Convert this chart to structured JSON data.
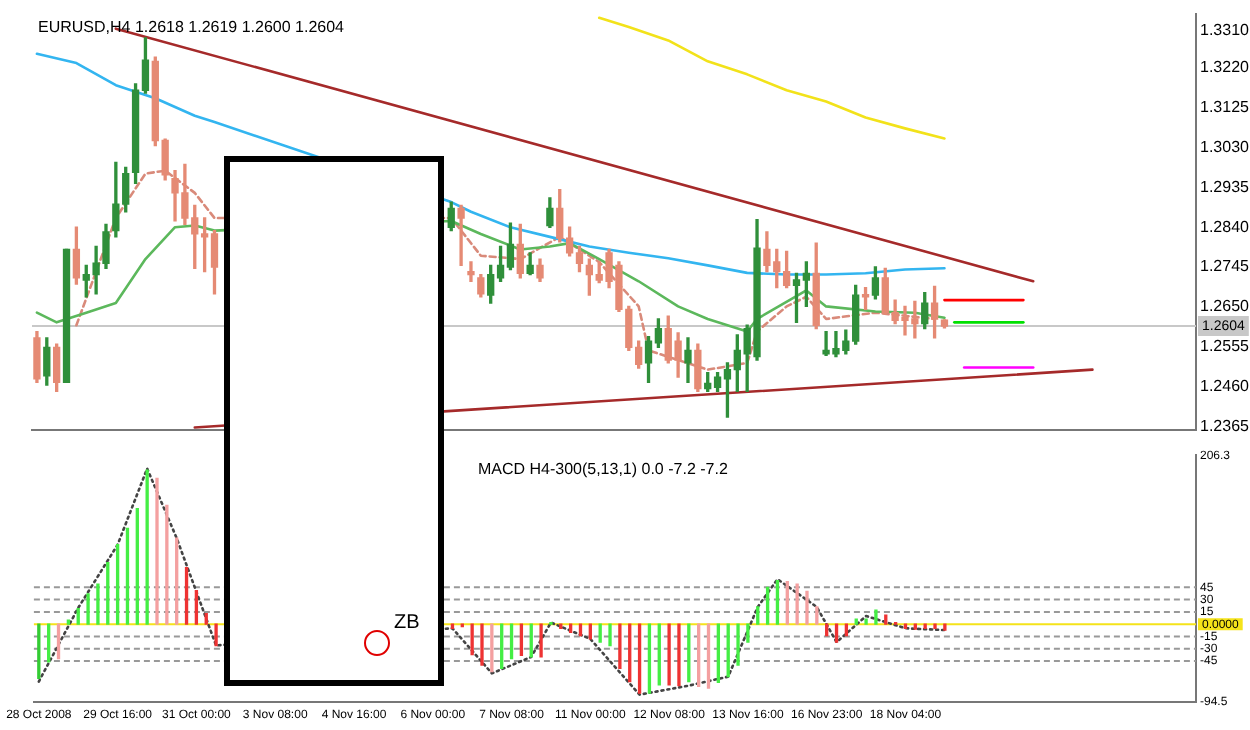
{
  "chart_data": [
    {
      "type": "candlestick",
      "title": "EURUSD,H4 1.2618 1.2619 1.2600 1.2604",
      "tick_labels": "y",
      "legend": false,
      "categories": [
        null,
        null,
        null,
        null,
        null,
        null,
        null,
        null,
        null,
        null,
        null,
        null,
        null,
        null,
        null,
        null,
        null,
        null,
        null,
        null,
        null,
        null,
        null,
        null,
        null,
        null,
        null,
        null,
        null,
        null,
        null,
        null,
        null,
        null,
        null,
        null,
        null,
        null,
        null,
        null,
        null,
        null,
        null,
        null,
        null,
        null,
        null,
        null,
        null,
        null,
        null,
        null,
        null,
        null,
        null,
        null,
        null,
        null,
        null,
        null,
        null,
        null,
        null,
        null,
        null,
        null,
        null,
        null,
        null,
        null,
        null,
        null,
        null,
        null,
        null,
        null,
        null,
        null,
        null,
        null,
        null,
        null,
        null,
        null,
        null,
        null,
        null,
        null,
        null,
        null,
        null,
        null,
        null,
        null,
        null,
        null,
        null,
        null,
        null,
        null,
        null,
        null,
        null,
        null,
        null,
        null,
        null,
        null,
        null,
        null,
        null,
        null,
        null,
        null,
        null,
        null,
        null,
        null
      ],
      "ohlc": [
        [
          1.2576,
          1.2591,
          1.247,
          1.2478
        ],
        [
          1.2485,
          1.2576,
          1.2463,
          1.2553
        ],
        [
          1.2553,
          1.2561,
          1.2448,
          1.247
        ],
        [
          1.247,
          1.2787,
          1.247,
          1.2787
        ],
        [
          1.2787,
          1.284,
          1.2704,
          1.2719
        ],
        [
          1.2714,
          1.2749,
          1.2674,
          1.2727
        ],
        [
          1.2727,
          1.2794,
          1.2681,
          1.2754
        ],
        [
          1.2754,
          1.2847,
          1.2742,
          1.2829
        ],
        [
          1.2832,
          1.2995,
          1.2817,
          1.2895
        ],
        [
          1.2895,
          1.2983,
          1.2877,
          1.2968
        ],
        [
          1.2971,
          1.3182,
          1.2945,
          1.3167
        ],
        [
          1.3167,
          1.3292,
          1.316,
          1.3239
        ],
        [
          1.3236,
          1.3246,
          1.3035,
          1.3047
        ],
        [
          1.3047,
          1.305,
          1.2953,
          1.2965
        ],
        [
          1.2956,
          1.2975,
          1.2855,
          1.2922
        ],
        [
          1.2922,
          1.299,
          1.2847,
          1.2862
        ],
        [
          1.2862,
          1.2892,
          1.2742,
          1.2824
        ],
        [
          1.2824,
          1.2862,
          1.2734,
          1.2817
        ],
        [
          1.2824,
          1.2832,
          1.2681,
          1.2745
        ],
        null,
        null,
        null,
        null,
        null,
        null,
        null,
        null,
        null,
        null,
        null,
        null,
        null,
        null,
        null,
        null,
        null,
        null,
        null,
        null,
        null,
        null,
        null,
        [
          1.284,
          1.29,
          1.2832,
          1.2885
        ],
        [
          1.2885,
          1.2892,
          1.2749,
          1.2862
        ],
        [
          1.2734,
          1.2757,
          1.2711,
          1.2727
        ],
        [
          1.2719,
          1.2727,
          1.2674,
          1.2681
        ],
        [
          1.2678,
          1.2749,
          1.2659,
          1.2727
        ],
        [
          1.2719,
          1.2794,
          1.2711,
          1.2749
        ],
        [
          1.2745,
          1.285,
          1.2739,
          1.2799
        ],
        [
          1.2799,
          1.2847,
          1.2719,
          1.273
        ],
        [
          1.273,
          1.2779,
          1.2727,
          1.2749
        ],
        [
          1.2749,
          1.2764,
          1.2711,
          1.2719
        ],
        [
          1.2844,
          1.291,
          1.284,
          1.2885
        ],
        [
          1.2885,
          1.293,
          1.2805,
          1.2814
        ],
        [
          1.2814,
          1.284,
          1.2772,
          1.2779
        ],
        [
          1.2779,
          1.2794,
          1.2734,
          1.2754
        ],
        [
          1.2749,
          1.2764,
          1.2678,
          1.2727
        ],
        [
          1.2727,
          1.2757,
          1.2708,
          1.2714
        ],
        [
          1.2779,
          1.2787,
          1.2696,
          1.2711
        ],
        [
          1.2749,
          1.2757,
          1.2639,
          1.2644
        ],
        [
          1.2644,
          1.2651,
          1.2546,
          1.2553
        ],
        [
          1.2553,
          1.2568,
          1.2504,
          1.2513
        ],
        [
          1.2516,
          1.2579,
          1.247,
          1.2568
        ],
        [
          1.2564,
          1.2621,
          1.2553,
          1.2598
        ],
        [
          1.2598,
          1.2628,
          1.2516,
          1.2523
        ],
        [
          1.2568,
          1.2588,
          1.2482,
          1.2523
        ],
        [
          1.2516,
          1.2576,
          1.247,
          1.2546
        ],
        [
          1.2546,
          1.2561,
          1.2448,
          1.2455
        ],
        [
          1.2455,
          1.2493,
          1.2448,
          1.2467
        ],
        [
          1.2458,
          1.2493,
          1.2448,
          1.2482
        ],
        [
          1.2478,
          1.2516,
          1.2387,
          1.25
        ],
        [
          1.25,
          1.2583,
          1.2448,
          1.2546
        ],
        [
          1.2538,
          1.2606,
          1.2448,
          1.2598
        ],
        [
          1.2531,
          1.2858,
          1.2523,
          1.279
        ],
        [
          1.2787,
          1.2829,
          1.2734,
          1.2749
        ],
        [
          1.2757,
          1.2787,
          1.2696,
          1.2734
        ],
        [
          1.2734,
          1.2782,
          1.2696,
          1.2701
        ],
        [
          1.2701,
          1.273,
          1.2613,
          1.2714
        ],
        [
          1.2714,
          1.2757,
          1.2651,
          1.273
        ],
        [
          1.273,
          1.2802,
          1.2598,
          1.2606
        ],
        [
          1.2538,
          1.2591,
          1.2534,
          1.2546
        ],
        [
          1.2538,
          1.2591,
          1.2531,
          1.255
        ],
        [
          1.2546,
          1.2594,
          1.2538,
          1.2568
        ],
        [
          1.2568,
          1.2701,
          1.2561,
          1.2678
        ],
        [
          1.2678,
          1.2696,
          1.2644,
          1.2674
        ],
        [
          1.2678,
          1.2745,
          1.2669,
          1.2719
        ],
        [
          1.2719,
          1.2742,
          1.2633,
          1.2636
        ],
        [
          1.2636,
          1.2666,
          1.261,
          1.2618
        ],
        [
          1.2624,
          1.2651,
          1.2583,
          1.2618
        ],
        [
          1.2621,
          1.2663,
          1.2576,
          1.261
        ],
        [
          1.261,
          1.2684,
          1.2598,
          1.2659
        ],
        [
          1.2659,
          1.2699,
          1.2576,
          1.2621
        ],
        [
          1.2618,
          1.2619,
          1.26,
          1.2604
        ],
        null,
        null,
        null,
        null,
        null,
        null,
        null,
        null,
        null,
        null,
        null,
        null,
        null,
        null,
        null,
        null,
        null,
        null,
        null,
        null,
        null,
        null,
        null,
        null,
        null
      ],
      "series": [
        {
          "type": "line",
          "color": "#33b5f0",
          "values": [
            1.3254,
            null,
            null,
            null,
            1.3232,
            null,
            null,
            null,
            1.3179,
            null,
            null,
            null,
            1.3148,
            null,
            null,
            null,
            1.3106,
            null,
            1.3091,
            null,
            null,
            null,
            null,
            null,
            null,
            null,
            null,
            null,
            null,
            null,
            null,
            null,
            null,
            null,
            null,
            null,
            null,
            null,
            null,
            null,
            null,
            null,
            1.29,
            null,
            1.2877,
            null,
            null,
            null,
            1.284,
            null,
            null,
            null,
            1.2817,
            null,
            null,
            null,
            1.2794,
            null,
            null,
            null,
            1.2779,
            null,
            null,
            null,
            1.2766,
            null,
            null,
            null,
            1.2749,
            null,
            null,
            null,
            1.2731,
            null,
            null,
            null,
            1.2727,
            null,
            null,
            null,
            1.2727,
            null,
            null,
            null,
            1.273,
            null,
            null,
            null,
            1.2739,
            null,
            null,
            null,
            1.2742,
            null,
            null,
            null,
            null,
            null,
            null,
            null,
            null,
            null,
            null,
            null,
            null,
            null,
            null,
            null,
            null,
            null,
            null,
            null,
            null,
            null,
            null,
            null,
            null,
            null
          ]
        },
        {
          "type": "line",
          "color": "#f2e21a",
          "values": [
            null,
            null,
            null,
            null,
            null,
            null,
            null,
            null,
            null,
            null,
            null,
            null,
            null,
            null,
            null,
            null,
            null,
            null,
            null,
            null,
            null,
            null,
            null,
            null,
            null,
            null,
            null,
            null,
            null,
            null,
            null,
            null,
            null,
            null,
            null,
            null,
            null,
            null,
            null,
            null,
            null,
            null,
            null,
            null,
            null,
            null,
            null,
            null,
            null,
            null,
            null,
            null,
            null,
            null,
            null,
            null,
            null,
            1.334,
            null,
            null,
            1.3318,
            null,
            null,
            null,
            1.3286,
            null,
            null,
            null,
            1.3236,
            null,
            null,
            null,
            1.3205,
            null,
            null,
            null,
            1.3167,
            null,
            null,
            null,
            1.314,
            null,
            null,
            null,
            1.3102,
            null,
            null,
            null,
            1.3076,
            null,
            null,
            null,
            1.3052,
            null,
            null,
            null,
            null,
            null,
            null,
            null,
            null,
            null,
            null,
            null,
            null,
            null,
            null,
            null,
            null,
            null,
            null,
            null,
            null,
            null,
            null,
            null,
            null,
            null
          ]
        },
        {
          "type": "line",
          "color": "#5cb85c",
          "values": [
            1.2636,
            null,
            1.2613,
            null,
            null,
            1.2636,
            null,
            null,
            1.2659,
            null,
            null,
            1.2764,
            null,
            null,
            1.284,
            null,
            1.2844,
            null,
            1.2832,
            null,
            null,
            null,
            null,
            null,
            null,
            null,
            null,
            null,
            null,
            null,
            null,
            null,
            null,
            null,
            null,
            null,
            null,
            null,
            null,
            null,
            null,
            null,
            1.2855,
            null,
            null,
            1.2824,
            null,
            null,
            null,
            1.2787,
            null,
            null,
            1.2794,
            null,
            1.2802,
            null,
            null,
            1.2764,
            null,
            null,
            null,
            1.2711,
            null,
            null,
            null,
            1.2651,
            null,
            null,
            1.2621,
            null,
            null,
            null,
            1.2591,
            1.2621,
            null,
            null,
            null,
            null,
            1.2689,
            null,
            1.2651,
            null,
            null,
            null,
            null,
            1.2639,
            null,
            null,
            null,
            1.2636,
            null,
            null,
            1.2624,
            null,
            null,
            null,
            null,
            null,
            null,
            null,
            null,
            null,
            null,
            null,
            null,
            null,
            null,
            null,
            null,
            null,
            null,
            null,
            null,
            null,
            null,
            null,
            null,
            null
          ]
        },
        {
          "type": "line",
          "color": "#d98a7a",
          "line_style": "dashed",
          "values": [
            null,
            null,
            null,
            null,
            1.2606,
            null,
            null,
            null,
            1.2862,
            null,
            null,
            1.2968,
            null,
            1.2975,
            null,
            null,
            1.2922,
            null,
            1.2862,
            null,
            null,
            null,
            null,
            null,
            null,
            null,
            null,
            null,
            null,
            null,
            null,
            null,
            null,
            null,
            null,
            null,
            null,
            null,
            null,
            null,
            null,
            null,
            1.2862,
            null,
            null,
            1.2772,
            null,
            null,
            null,
            1.2764,
            null,
            null,
            null,
            1.2817,
            null,
            null,
            null,
            1.2757,
            null,
            null,
            null,
            1.2651,
            1.2546,
            null,
            null,
            null,
            null,
            null,
            1.25,
            null,
            null,
            null,
            1.2516,
            1.2591,
            null,
            null,
            1.2651,
            null,
            1.2674,
            null,
            1.2621,
            null,
            null,
            null,
            null,
            1.2636,
            null,
            null,
            null,
            null,
            null,
            1.2621,
            null,
            null,
            null,
            null,
            null,
            null,
            null,
            null,
            null,
            null,
            null,
            null,
            null,
            null,
            null,
            null,
            null,
            null,
            null,
            null,
            null,
            null,
            null,
            null,
            null,
            null
          ]
        },
        {
          "type": "line",
          "color": "#a52a2a",
          "values": [
            null,
            null,
            null,
            null,
            null,
            null,
            null,
            null,
            1.3314,
            null,
            null,
            null,
            null,
            null,
            null,
            null,
            null,
            null,
            null,
            null,
            null,
            null,
            null,
            null,
            null,
            null,
            null,
            null,
            null,
            null,
            null,
            null,
            null,
            null,
            null,
            null,
            null,
            null,
            null,
            null,
            null,
            null,
            null,
            null,
            null,
            null,
            null,
            null,
            null,
            null,
            null,
            null,
            null,
            null,
            null,
            null,
            null,
            null,
            null,
            null,
            null,
            null,
            null,
            null,
            null,
            null,
            null,
            null,
            null,
            null,
            null,
            null,
            null,
            null,
            null,
            null,
            null,
            null,
            null,
            null,
            null,
            null,
            null,
            null,
            null,
            null,
            null,
            null,
            null,
            null,
            null,
            null,
            null,
            null,
            null,
            null,
            null,
            null,
            null,
            null,
            null,
            1.2711,
            null,
            null,
            null,
            null,
            null,
            null,
            null,
            null,
            null,
            null,
            null,
            null,
            null,
            null,
            null,
            null
          ]
        },
        {
          "type": "line",
          "color": "#a52a2a",
          "values": [
            null,
            null,
            null,
            null,
            null,
            null,
            null,
            null,
            null,
            null,
            null,
            null,
            null,
            null,
            null,
            null,
            1.2362,
            null,
            null,
            null,
            null,
            null,
            null,
            null,
            null,
            null,
            null,
            null,
            null,
            null,
            null,
            null,
            null,
            null,
            null,
            null,
            null,
            null,
            null,
            null,
            null,
            null,
            null,
            null,
            null,
            null,
            null,
            null,
            null,
            null,
            null,
            null,
            null,
            null,
            null,
            null,
            null,
            null,
            null,
            null,
            null,
            null,
            null,
            null,
            null,
            null,
            null,
            null,
            null,
            null,
            null,
            null,
            null,
            null,
            null,
            null,
            null,
            null,
            null,
            null,
            null,
            null,
            null,
            null,
            null,
            null,
            null,
            null,
            null,
            null,
            null,
            null,
            null,
            null,
            null,
            null,
            null,
            null,
            null,
            null,
            null,
            null,
            null,
            null,
            null,
            null,
            null,
            1.25,
            null,
            null,
            null,
            null,
            null,
            null,
            null,
            null,
            null,
            null
          ]
        },
        {
          "type": "line",
          "color": "#ff0000",
          "values": [
            null,
            null,
            null,
            null,
            null,
            null,
            null,
            null,
            null,
            null,
            null,
            null,
            null,
            null,
            null,
            null,
            null,
            null,
            null,
            null,
            null,
            null,
            null,
            null,
            null,
            null,
            null,
            null,
            null,
            null,
            null,
            null,
            null,
            null,
            null,
            null,
            null,
            null,
            null,
            null,
            null,
            null,
            null,
            null,
            null,
            null,
            null,
            null,
            null,
            null,
            null,
            null,
            null,
            null,
            null,
            null,
            null,
            null,
            null,
            null,
            null,
            null,
            null,
            null,
            null,
            null,
            null,
            null,
            null,
            null,
            null,
            null,
            null,
            null,
            null,
            null,
            null,
            null,
            null,
            null,
            null,
            null,
            null,
            null,
            null,
            null,
            null,
            null,
            null,
            null,
            null,
            null,
            1.2666,
            null,
            null,
            null,
            null,
            null,
            null,
            null,
            1.2666,
            null,
            null,
            null,
            null,
            null,
            null,
            null,
            null,
            null,
            null,
            null,
            null,
            null,
            null,
            null,
            null,
            null
          ]
        },
        {
          "type": "line",
          "color": "#00e000",
          "values": [
            null,
            null,
            null,
            null,
            null,
            null,
            null,
            null,
            null,
            null,
            null,
            null,
            null,
            null,
            null,
            null,
            null,
            null,
            null,
            null,
            null,
            null,
            null,
            null,
            null,
            null,
            null,
            null,
            null,
            null,
            null,
            null,
            null,
            null,
            null,
            null,
            null,
            null,
            null,
            null,
            null,
            null,
            null,
            null,
            null,
            null,
            null,
            null,
            null,
            null,
            null,
            null,
            null,
            null,
            null,
            null,
            null,
            null,
            null,
            null,
            null,
            null,
            null,
            null,
            null,
            null,
            null,
            null,
            null,
            null,
            null,
            null,
            null,
            null,
            null,
            null,
            null,
            null,
            null,
            null,
            null,
            null,
            null,
            null,
            null,
            null,
            null,
            null,
            null,
            null,
            null,
            null,
            null,
            1.2613,
            null,
            null,
            null,
            null,
            null,
            null,
            1.2613,
            null,
            null,
            null,
            null,
            null,
            null,
            null,
            null,
            null,
            null,
            null,
            null,
            null,
            null,
            null,
            null,
            null
          ]
        },
        {
          "type": "line",
          "color": "#ff00ff",
          "values": [
            null,
            null,
            null,
            null,
            null,
            null,
            null,
            null,
            null,
            null,
            null,
            null,
            null,
            null,
            null,
            null,
            null,
            null,
            null,
            null,
            null,
            null,
            null,
            null,
            null,
            null,
            null,
            null,
            null,
            null,
            null,
            null,
            null,
            null,
            null,
            null,
            null,
            null,
            null,
            null,
            null,
            null,
            null,
            null,
            null,
            null,
            null,
            null,
            null,
            null,
            null,
            null,
            null,
            null,
            null,
            null,
            null,
            null,
            null,
            null,
            null,
            null,
            null,
            null,
            null,
            null,
            null,
            null,
            null,
            null,
            null,
            null,
            null,
            null,
            null,
            null,
            null,
            null,
            null,
            null,
            null,
            null,
            null,
            null,
            null,
            null,
            null,
            null,
            null,
            null,
            null,
            null,
            null,
            null,
            1.2505,
            null,
            null,
            null,
            null,
            null,
            null,
            1.2505,
            null,
            null,
            null,
            null,
            null,
            null,
            null,
            null,
            null,
            null,
            null,
            null,
            null,
            null,
            null,
            null
          ]
        }
      ],
      "ylim": [
        1.2355,
        1.335
      ],
      "yticks": [
        {
          "value": 1.331,
          "label": "1.3310"
        },
        {
          "value": 1.322,
          "label": "1.3220"
        },
        1.3125,
        {
          "value": 1.303,
          "label": "1.3030"
        },
        1.2935,
        {
          "value": 1.284,
          "label": "1.2840"
        },
        1.2745,
        {
          "value": 1.265,
          "label": "1.2650"
        },
        1.2555,
        {
          "value": 1.246,
          "label": "1.2460"
        },
        1.2365
      ],
      "ref_lines": [
        {
          "axis": "y",
          "value": 1.2604,
          "label": "1.2604",
          "color": "#c8c8c8"
        }
      ]
    },
    {
      "type": "bar",
      "title": "MACD H4-300(5,13,1) 0.0 -7.2 -7.2",
      "legend": false,
      "categories": [
        "28 Oct 2008",
        null,
        null,
        null,
        null,
        null,
        null,
        null,
        "29 Oct 16:00",
        null,
        null,
        null,
        null,
        null,
        null,
        null,
        "31 Oct 00:00",
        null,
        null,
        null,
        null,
        null,
        null,
        null,
        "3 Nov 08:00",
        null,
        null,
        null,
        null,
        null,
        null,
        null,
        "4 Nov 16:00",
        null,
        null,
        null,
        null,
        null,
        null,
        null,
        "6 Nov 00:00",
        null,
        null,
        null,
        null,
        null,
        null,
        null,
        "7 Nov 08:00",
        null,
        null,
        null,
        null,
        null,
        null,
        null,
        "11 Nov 00:00",
        null,
        null,
        null,
        null,
        null,
        null,
        null,
        "12 Nov 08:00",
        null,
        null,
        null,
        null,
        null,
        null,
        null,
        "13 Nov 16:00",
        null,
        null,
        null,
        null,
        null,
        null,
        null,
        "16 Nov 23:00",
        null,
        null,
        null,
        null,
        null,
        null,
        null,
        "18 Nov 04:00",
        null,
        null,
        null,
        null,
        null,
        null,
        null,
        null,
        null,
        null,
        null,
        null,
        null,
        null,
        null,
        null,
        null,
        null,
        null,
        null,
        null,
        null,
        null,
        null,
        null,
        null,
        null,
        null,
        null
      ],
      "values": [
        -66,
        -46,
        -42,
        5,
        19,
        37,
        49,
        75,
        97,
        117,
        141,
        188,
        178,
        145,
        105,
        69,
        41,
        13,
        -26,
        null,
        null,
        null,
        null,
        null,
        null,
        null,
        null,
        null,
        null,
        null,
        null,
        null,
        null,
        null,
        null,
        null,
        null,
        null,
        null,
        null,
        null,
        null,
        -5,
        -3,
        -37,
        -50,
        -58,
        -54,
        -42,
        -38,
        -40,
        -40,
        2,
        -5,
        -10,
        -14,
        -18,
        -22,
        -26,
        -54,
        -70,
        -84,
        -84,
        -74,
        -74,
        -75,
        -70,
        -76,
        -78,
        -71,
        -64,
        -50,
        -22,
        21,
        45,
        53,
        52,
        49,
        40,
        21,
        -14,
        -22,
        -14,
        6,
        6,
        17,
        11,
        2,
        -5,
        -6,
        -5,
        -5,
        -7.2,
        null,
        null,
        null,
        null,
        null,
        null,
        null,
        null,
        null,
        null,
        null,
        null,
        null,
        null,
        null,
        null,
        null,
        null,
        null,
        null,
        null,
        null,
        null,
        null,
        null
      ],
      "colors": [
        "#33cc33",
        "#44ee44",
        "#f4a0a0",
        "#44ee44",
        "#44ee44",
        "#44ee44",
        "#44ee44",
        "#44ee44",
        "#44ee44",
        "#44ee44",
        "#44ee44",
        "#44ee44",
        "#f4a0a0",
        "#f4a0a0",
        "#f4a0a0",
        "#ee3333",
        "#ee3333",
        "#ee3333",
        "#ee3333",
        null,
        null,
        null,
        null,
        null,
        null,
        null,
        null,
        null,
        null,
        null,
        null,
        null,
        null,
        null,
        null,
        null,
        null,
        null,
        null,
        null,
        null,
        null,
        "#ee3333",
        "#ee3333",
        "#ee3333",
        "#ee3333",
        "#f4a0a0",
        "#44ee44",
        "#44ee44",
        "#ee3333",
        "#44ee44",
        "#ee3333",
        "#44ee44",
        "#ee3333",
        "#ee3333",
        "#ee3333",
        "#ee3333",
        "#44ee44",
        "#44ee44",
        "#ee3333",
        "#ee3333",
        "#ee3333",
        "#44ee44",
        "#44ee44",
        "#ee3333",
        "#ee3333",
        "#44ee44",
        "#f4a0a0",
        "#f4a0a0",
        "#44ee44",
        "#44ee44",
        "#44ee44",
        "#44ee44",
        "#44ee44",
        "#44ee44",
        "#44ee44",
        "#f4a0a0",
        "#f4a0a0",
        "#f4a0a0",
        "#f4a0a0",
        "#ee3333",
        "#ee3333",
        "#ee3333",
        "#44ee44",
        "#44ee44",
        "#44ee44",
        "#ee3333",
        "#ee3333",
        "#ee3333",
        "#ee3333",
        "#ee3333",
        "#ee3333",
        "#ee3333",
        null,
        null,
        null,
        null,
        null,
        null,
        null,
        null,
        null,
        null,
        null,
        null,
        null,
        null,
        null,
        null,
        null,
        null,
        null,
        null,
        null,
        null,
        null,
        null,
        null
      ],
      "series": [
        {
          "type": "line",
          "color": "#444444",
          "line_style": "dotted",
          "values": [
            -70,
            null,
            null,
            null,
            20,
            null,
            null,
            null,
            97,
            null,
            null,
            190,
            null,
            null,
            105,
            null,
            null,
            null,
            -26,
            null,
            null,
            null,
            null,
            null,
            null,
            null,
            null,
            null,
            null,
            null,
            null,
            null,
            null,
            null,
            null,
            null,
            null,
            null,
            null,
            null,
            null,
            null,
            -5,
            null,
            null,
            null,
            -60,
            null,
            null,
            null,
            -40,
            null,
            2,
            null,
            null,
            null,
            -18,
            null,
            null,
            null,
            null,
            -86,
            null,
            null,
            null,
            null,
            -75,
            null,
            null,
            null,
            -64,
            null,
            null,
            21,
            null,
            55,
            null,
            null,
            null,
            21,
            null,
            -22,
            null,
            null,
            10,
            null,
            null,
            null,
            -5,
            null,
            null,
            null,
            -7.2,
            null,
            null,
            null,
            null,
            null,
            null,
            null,
            null,
            null,
            null,
            null,
            null,
            null,
            null,
            null,
            null,
            null,
            null,
            null,
            null,
            null,
            null,
            null,
            null,
            null
          ]
        }
      ],
      "ylim": [
        -94.5,
        206.3
      ],
      "yticks": [
        206.3,
        45,
        30,
        15,
        -15,
        -30,
        -45,
        -94.5
      ],
      "ref_lines": [
        {
          "axis": "y",
          "value": 45,
          "color": "#999999",
          "line_style": "dashed"
        },
        {
          "axis": "y",
          "value": 30,
          "color": "#999999",
          "line_style": "dashed"
        },
        {
          "axis": "y",
          "value": 15,
          "color": "#999999",
          "line_style": "dashed"
        },
        {
          "axis": "y",
          "value": -15,
          "color": "#999999",
          "line_style": "dashed"
        },
        {
          "axis": "y",
          "value": -30,
          "color": "#999999",
          "line_style": "dashed"
        },
        {
          "axis": "y",
          "value": -45,
          "color": "#999999",
          "line_style": "dashed"
        },
        {
          "axis": "y",
          "value": 0,
          "label": "0.0000",
          "color": "#f5e31a"
        }
      ],
      "annotations": [
        "ZB"
      ]
    }
  ]
}
